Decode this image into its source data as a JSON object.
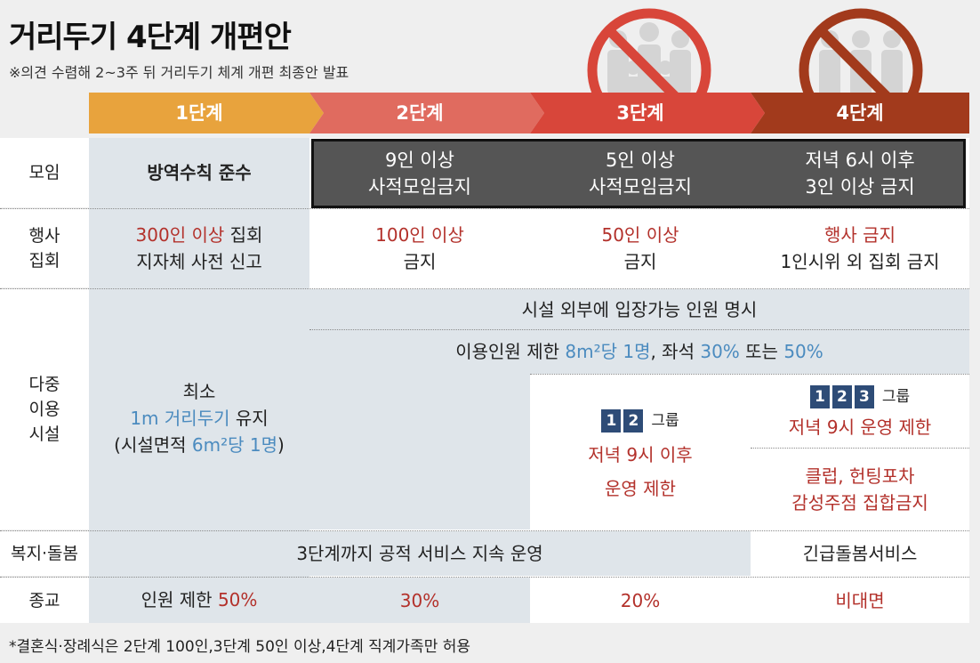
{
  "header": {
    "title": "거리두기 4단계 개편안",
    "subtitle": "※의견 수렴해 2~3주 뒤 거리두기 체계 개편 최종안 발표"
  },
  "colors": {
    "step1": "#e8a33d",
    "step2": "#e06b5f",
    "step3": "#d8463a",
    "step4": "#a23a1c",
    "highlight_red": "#b3312b",
    "highlight_blue": "#4b8bbf",
    "dark_box": "#555555",
    "group_square": "#2e4c77"
  },
  "icons": [
    "ban-crowd-icon",
    "ban-crowd-icon"
  ],
  "steps": [
    "1단계",
    "2단계",
    "3단계",
    "4단계"
  ],
  "rows": {
    "gathering": {
      "label": "모임",
      "s1": "방역수칙 준수",
      "s2": [
        "9인 이상",
        "사적모임금지"
      ],
      "s3": [
        "5인 이상",
        "사적모임금지"
      ],
      "s4": [
        "저녁 6시 이후",
        "3인 이상 금지"
      ]
    },
    "events": {
      "label": [
        "행사",
        "집회"
      ],
      "s1": {
        "highlight": "300인 이상",
        "rest": " 집회",
        "line2": "지자체 사전 신고"
      },
      "s2": {
        "highlight": "100인 이상",
        "line2": "금지"
      },
      "s3": {
        "highlight": "50인 이상",
        "line2": "금지"
      },
      "s4": {
        "highlight": "행사 금지",
        "line2": "1인시위 외 집회 금지"
      }
    },
    "facilities": {
      "label": [
        "다중",
        "이용",
        "시설"
      ],
      "s1": {
        "line1": "최소",
        "line2_hl": "1m 거리두기",
        "line2_rest": " 유지",
        "line3_a": "(시설면적 ",
        "line3_hl": "6m²당 1명",
        "line3_b": ")"
      },
      "span_all": "시설 외부에 입장가능 인원 명시",
      "span_2to4": {
        "a": "이용인원 제한 ",
        "hl1": "8m²당 1명",
        "b": ", 좌석 ",
        "hl2": "30%",
        "c": " 또는 ",
        "hl3": "50%"
      },
      "s3": {
        "groups": [
          "1",
          "2"
        ],
        "group_label": "그룹",
        "line1": "저녁 9시 이후",
        "line2": "운영 제한"
      },
      "s4": {
        "groups": [
          "1",
          "2",
          "3"
        ],
        "group_label": "그룹",
        "line1": "저녁 9시 운영 제한",
        "line2": "클럽, 헌팅포차",
        "line3": "감성주점 집합금지"
      }
    },
    "welfare": {
      "label": "복지·돌봄",
      "span_1to3": "3단계까지 공적 서비스 지속 운영",
      "s4": "긴급돌봄서비스"
    },
    "religion": {
      "label": "종교",
      "s1": {
        "a": "인원 제한 ",
        "hl": "50%"
      },
      "s2": "30%",
      "s3": "20%",
      "s4": "비대면"
    }
  },
  "footnote": "*결혼식·장례식은 2단계 100인,3단계 50인 이상,4단계 직계가족만 허용"
}
